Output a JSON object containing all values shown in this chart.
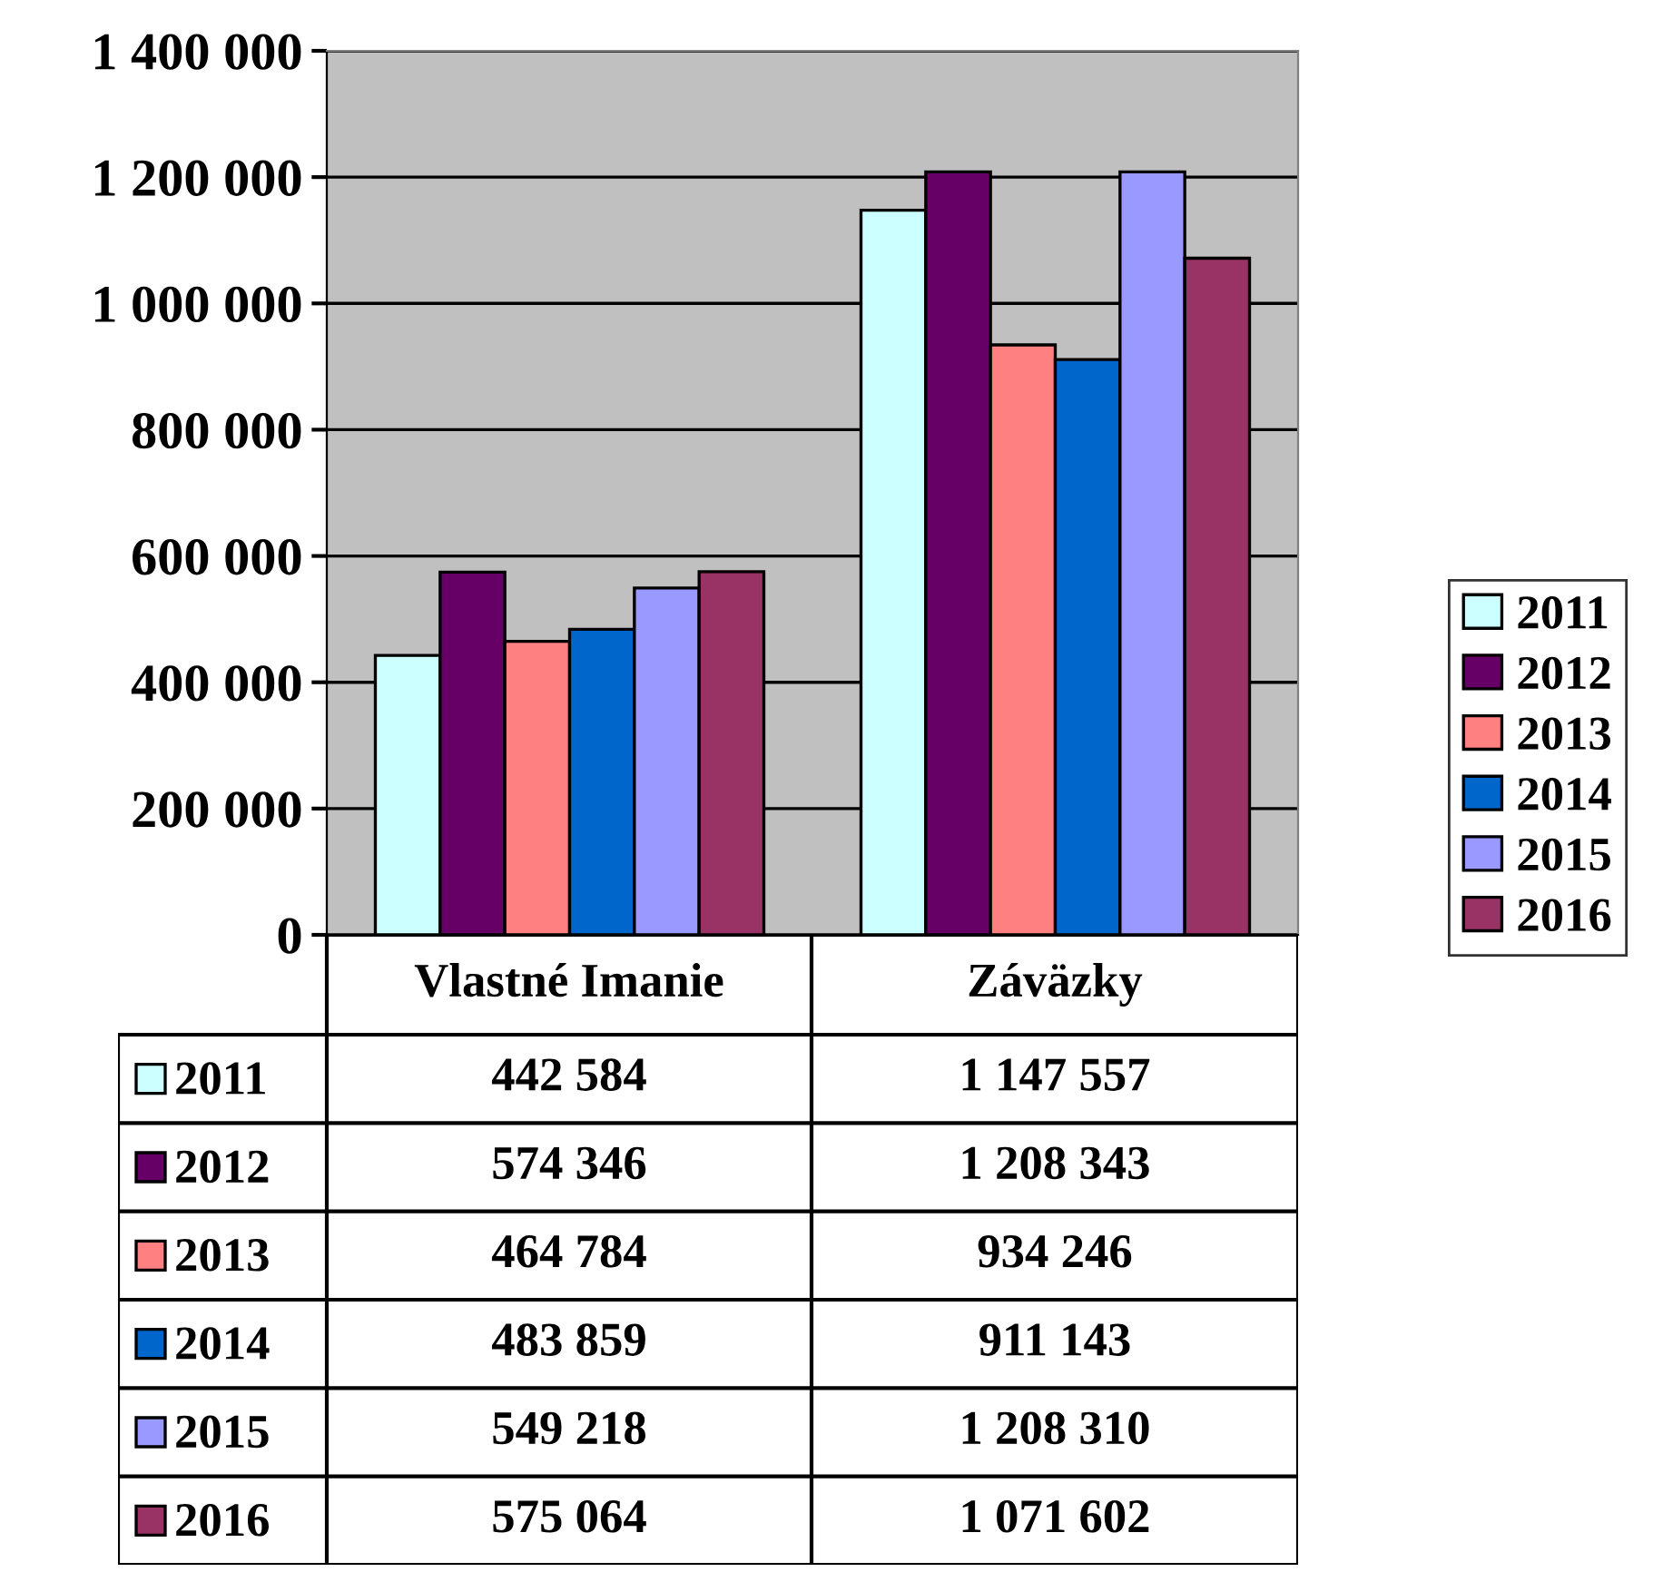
{
  "chart_data": {
    "type": "bar",
    "categories": [
      "Vlastné Imanie",
      "Záväzky"
    ],
    "series": [
      {
        "name": "2011",
        "color": "#ccffff",
        "values": [
          442584,
          1147557
        ],
        "value_labels": [
          "442 584",
          "1 147 557"
        ]
      },
      {
        "name": "2012",
        "color": "#660066",
        "values": [
          574346,
          1208343
        ],
        "value_labels": [
          "574 346",
          "1 208 343"
        ]
      },
      {
        "name": "2013",
        "color": "#ff8080",
        "values": [
          464784,
          934246
        ],
        "value_labels": [
          "464 784",
          "934 246"
        ]
      },
      {
        "name": "2014",
        "color": "#0066cc",
        "values": [
          483859,
          911143
        ],
        "value_labels": [
          "483 859",
          "911 143"
        ]
      },
      {
        "name": "2015",
        "color": "#9999ff",
        "values": [
          549218,
          1208310
        ],
        "value_labels": [
          "549 218",
          "1 208 310"
        ]
      },
      {
        "name": "2016",
        "color": "#993366",
        "values": [
          575064,
          1071602
        ],
        "value_labels": [
          "575 064",
          "1 071 602"
        ]
      }
    ],
    "ylim": [
      0,
      1400000
    ],
    "yticks": [
      0,
      {
        "value": 200000,
        "label": "200 000"
      },
      {
        "value": 400000,
        "label": "400 000"
      },
      {
        "value": 600000,
        "label": "600 000"
      },
      {
        "value": 800000,
        "label": "800 000"
      },
      {
        "value": 1000000,
        "label": "1 000 000"
      },
      {
        "value": 1200000,
        "label": "1 200 000"
      },
      {
        "value": 1400000,
        "label": "1 400 000"
      }
    ],
    "grid": "y",
    "legend": "right"
  }
}
